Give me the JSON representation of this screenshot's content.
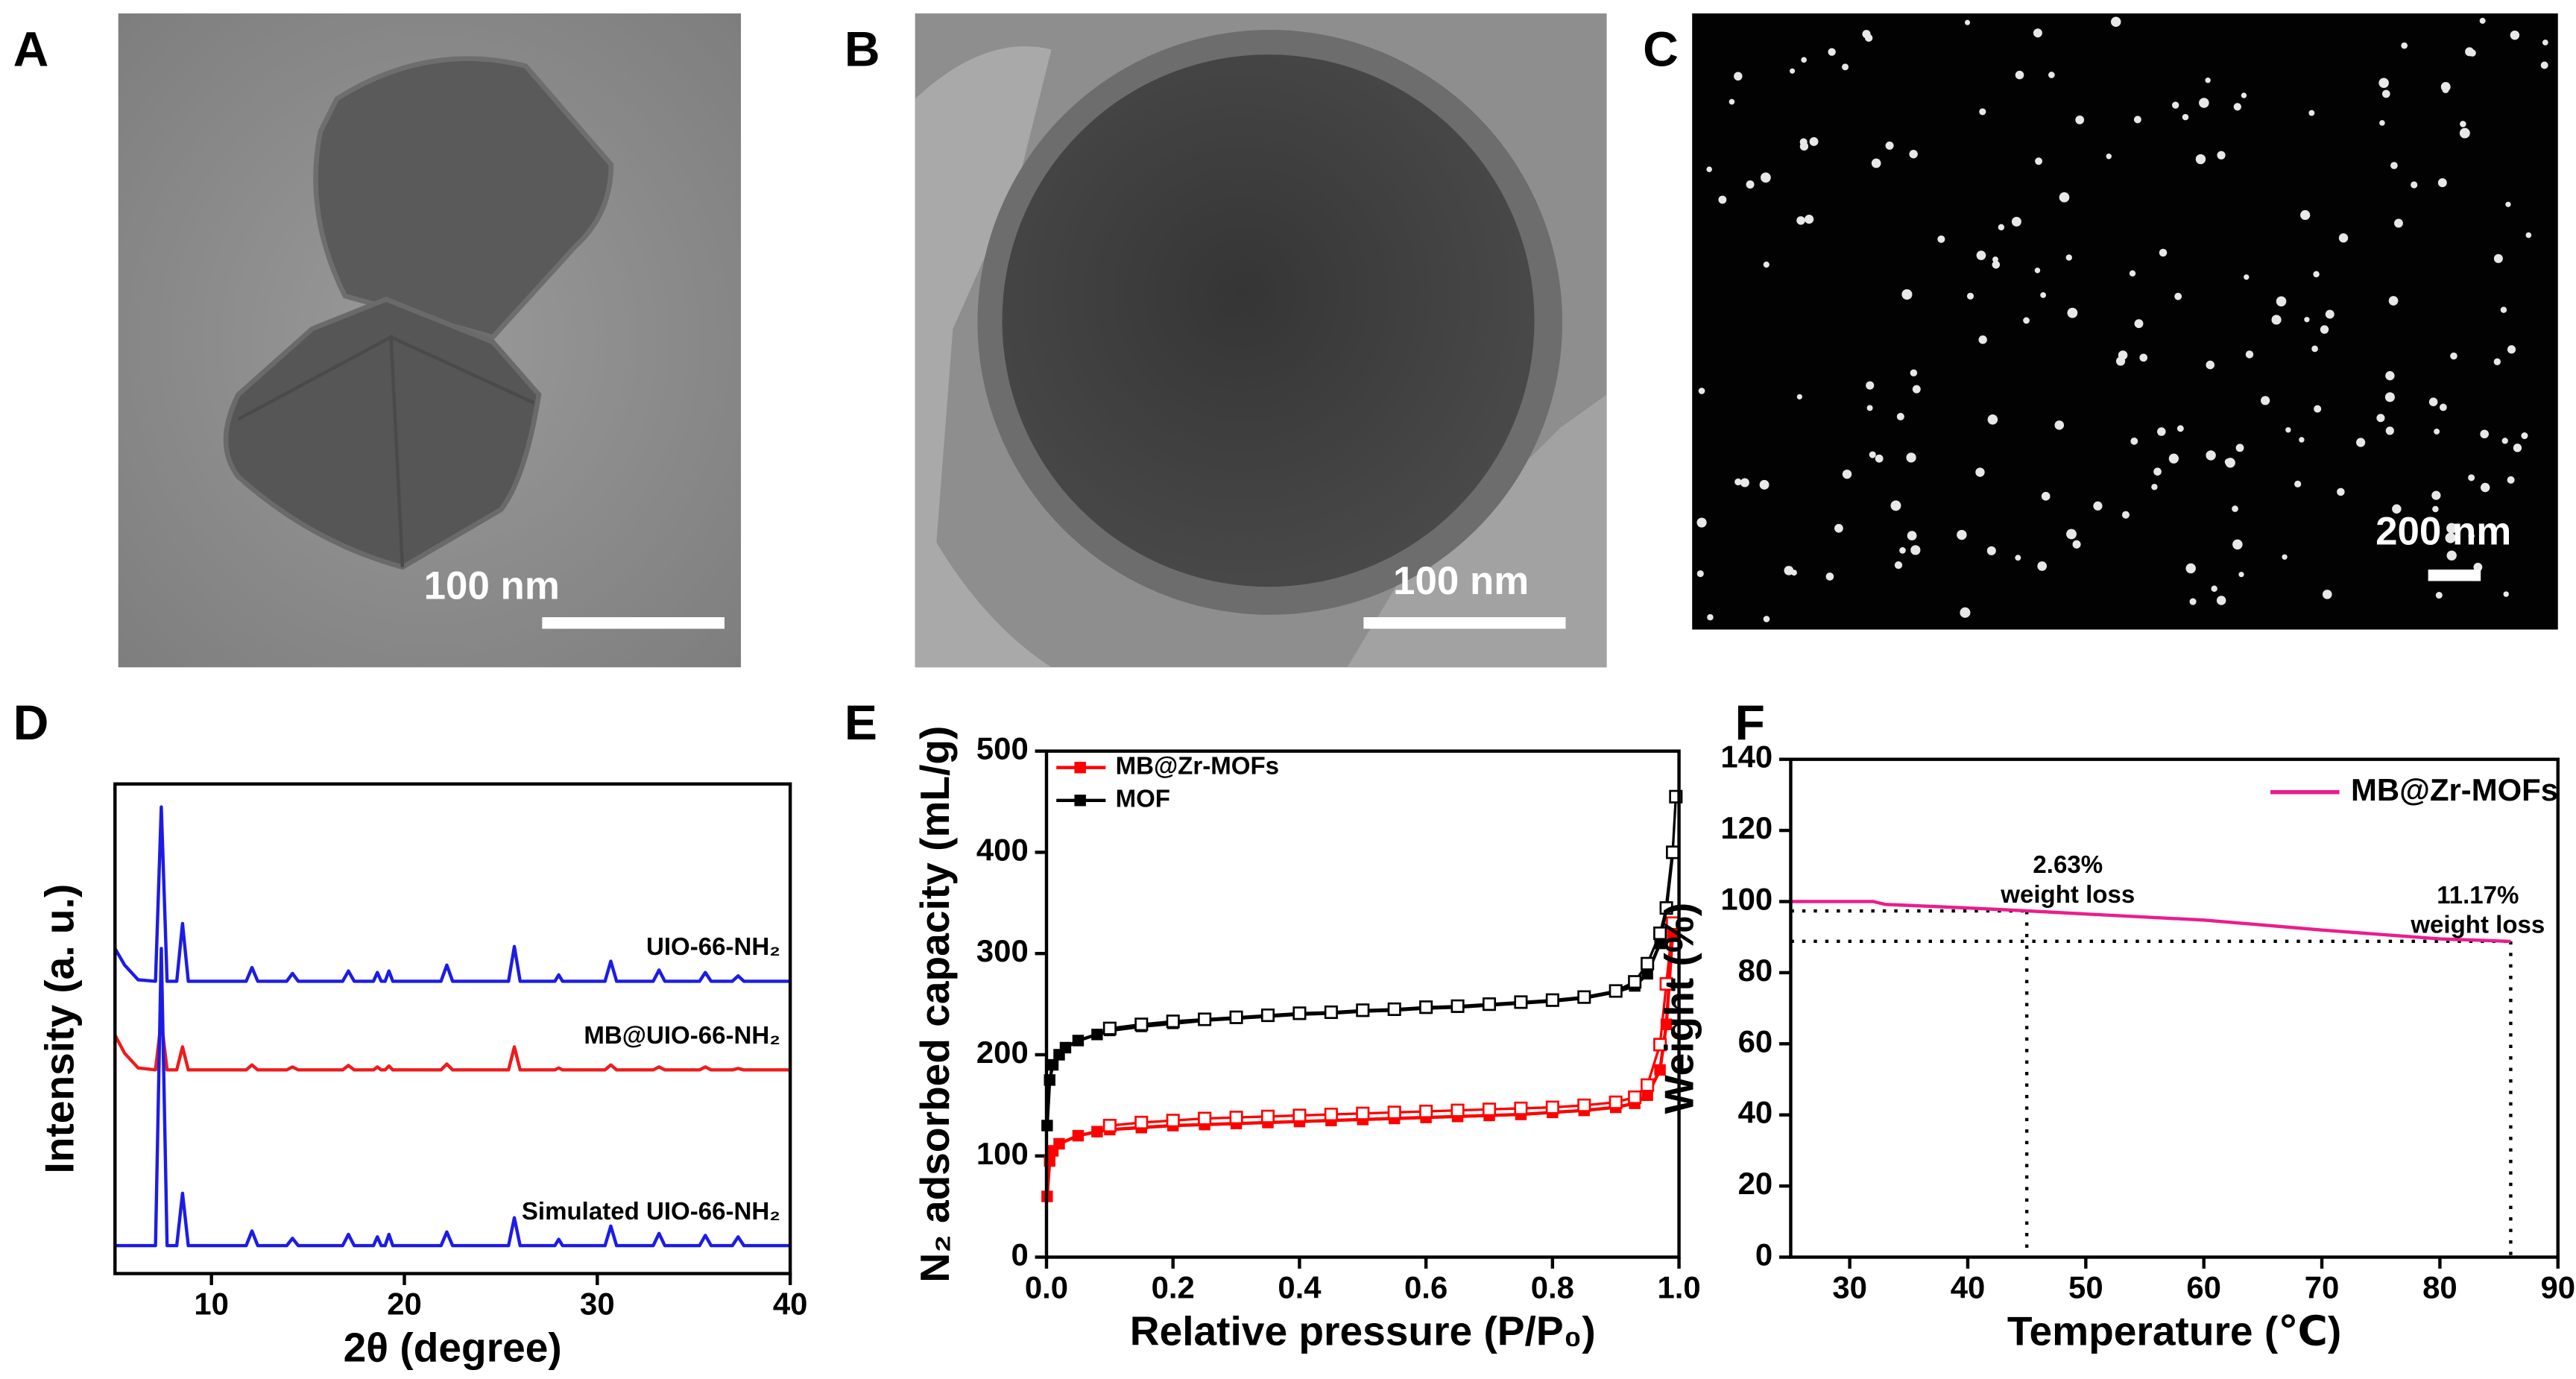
{
  "panels": [
    {
      "label": "A",
      "scale_bar": "100 nm"
    },
    {
      "label": "B",
      "scale_bar": "100 nm"
    },
    {
      "label": "C",
      "scale_bar": "200 nm"
    },
    {
      "label": "D"
    },
    {
      "label": "E"
    },
    {
      "label": "F"
    }
  ],
  "chart_data": [
    {
      "type": "line",
      "x_label": "2θ (degree)",
      "y_label": "Intensity (a. u.)",
      "legend": "inline",
      "xlim": [
        5,
        40
      ],
      "xticks": [
        10,
        20,
        30,
        40
      ],
      "ylim": [
        0,
        100
      ],
      "yticks": [],
      "x": [
        5,
        5.5,
        6.2,
        7.1,
        7.4,
        7.7,
        8.2,
        8.5,
        8.8,
        11.8,
        12.1,
        12.4,
        13.9,
        14.2,
        14.5,
        16.8,
        17.1,
        17.4,
        18.4,
        18.6,
        18.8,
        19.0,
        19.2,
        19.4,
        21.9,
        22.2,
        22.5,
        25.4,
        25.7,
        26.0,
        27.8,
        28.0,
        28.2,
        30.4,
        30.7,
        31.0,
        32.9,
        33.2,
        33.5,
        35.3,
        35.6,
        35.9,
        37.0,
        37.3,
        37.6,
        40
      ],
      "series": [
        {
          "name": "UIO-66-NH₂",
          "color": "#1c1ce6",
          "values": [
            66.4,
            63,
            60,
            59.7,
            95.3,
            59.7,
            59.7,
            71.5,
            59.7,
            59.7,
            62.5,
            59.7,
            59.7,
            61.3,
            59.7,
            59.7,
            61.8,
            59.7,
            59.7,
            61.5,
            59.7,
            59.7,
            61.8,
            59.7,
            59.7,
            63,
            59.7,
            59.7,
            66.8,
            59.7,
            59.7,
            61,
            59.7,
            59.7,
            63.8,
            59.7,
            59.7,
            62,
            59.7,
            59.7,
            61.5,
            59.7,
            59.7,
            60.8,
            59.7,
            59.7
          ]
        },
        {
          "name": "MB@UIO-66-NH₂",
          "color": "#ee1c1c",
          "values": [
            48.7,
            45,
            42,
            41.6,
            51.7,
            41.6,
            41.6,
            46.3,
            41.6,
            41.6,
            42.6,
            41.6,
            41.6,
            42.2,
            41.6,
            41.6,
            42.5,
            41.6,
            41.6,
            42.2,
            41.6,
            41.6,
            42.4,
            41.6,
            41.6,
            42.8,
            41.6,
            41.6,
            46.3,
            41.6,
            41.6,
            42,
            41.6,
            41.6,
            42.6,
            41.6,
            41.6,
            42.2,
            41.6,
            41.6,
            42.2,
            41.6,
            41.6,
            41.9,
            41.6,
            41.6
          ]
        },
        {
          "name": "Simulated UIO-66-NH₂",
          "color": "#1c1ce6",
          "values": [
            5.7,
            5.7,
            5.7,
            5.7,
            66.4,
            5.7,
            5.7,
            16.4,
            5.7,
            5.7,
            8.7,
            5.7,
            5.7,
            7.2,
            5.7,
            5.7,
            8,
            5.7,
            5.7,
            7.5,
            5.7,
            5.7,
            8,
            5.7,
            5.7,
            8.5,
            5.7,
            5.7,
            11.4,
            5.7,
            5.7,
            7,
            5.7,
            5.7,
            9.7,
            5.7,
            5.7,
            8.2,
            5.7,
            5.7,
            7.8,
            5.7,
            5.7,
            7.5,
            5.7,
            5.7
          ]
        }
      ]
    },
    {
      "type": "line",
      "x_label": "Relative pressure (P/P₀)",
      "y_label": "N₂ adsorbed capacity (mL/g)",
      "legend": "upper left",
      "markers": "square",
      "xlim": [
        0,
        1
      ],
      "xticks": [
        {
          "value": 0,
          "label": "0.0"
        },
        0.2,
        0.4,
        0.6,
        0.8,
        {
          "value": 1,
          "label": "1.0"
        }
      ],
      "ylim": [
        0,
        500
      ],
      "yticks": [
        0,
        100,
        200,
        300,
        400,
        500
      ],
      "series": [
        {
          "name": "MB@Zr-MOFs",
          "color": "#ff0000",
          "x": [
            0.001,
            0.005,
            0.01,
            0.02,
            0.05,
            0.08,
            0.1,
            0.15,
            0.2,
            0.25,
            0.3,
            0.35,
            0.4,
            0.45,
            0.5,
            0.55,
            0.6,
            0.65,
            0.7,
            0.75,
            0.8,
            0.85,
            0.9,
            0.93,
            0.95,
            0.97,
            0.98,
            0.99
          ],
          "values": [
            60,
            95,
            105,
            112,
            120,
            124,
            126,
            128,
            130,
            131,
            132,
            133,
            134,
            135,
            136,
            137,
            138,
            139,
            140,
            141,
            143,
            145,
            148,
            152,
            160,
            185,
            230,
            320
          ],
          "desorption_x": [
            0.99,
            0.98,
            0.97,
            0.95,
            0.93,
            0.9,
            0.85,
            0.8,
            0.75,
            0.7,
            0.65,
            0.6,
            0.55,
            0.5,
            0.45,
            0.4,
            0.35,
            0.3,
            0.25,
            0.2,
            0.15,
            0.1
          ],
          "desorption_values": [
            330,
            270,
            210,
            170,
            158,
            153,
            150,
            148,
            147,
            146,
            145,
            144,
            143,
            142,
            141,
            140,
            139,
            138,
            137,
            135,
            133,
            130
          ]
        },
        {
          "name": "MOF",
          "color": "#000000",
          "x": [
            0.001,
            0.005,
            0.01,
            0.02,
            0.03,
            0.05,
            0.08,
            0.1,
            0.15,
            0.2,
            0.25,
            0.3,
            0.35,
            0.4,
            0.45,
            0.5,
            0.55,
            0.6,
            0.65,
            0.7,
            0.75,
            0.8,
            0.85,
            0.9,
            0.93,
            0.95,
            0.97,
            0.98,
            0.99
          ],
          "values": [
            130,
            175,
            190,
            200,
            207,
            214,
            220,
            224,
            228,
            231,
            234,
            236,
            238,
            240,
            241,
            243,
            244,
            246,
            247,
            249,
            251,
            253,
            256,
            262,
            268,
            280,
            310,
            345,
            400
          ],
          "desorption_x": [
            0.995,
            0.99,
            0.98,
            0.97,
            0.95,
            0.93,
            0.9,
            0.85,
            0.8,
            0.75,
            0.7,
            0.65,
            0.6,
            0.55,
            0.5,
            0.45,
            0.4,
            0.35,
            0.3,
            0.25,
            0.2,
            0.15,
            0.1
          ],
          "desorption_values": [
            455,
            400,
            345,
            320,
            290,
            272,
            263,
            257,
            254,
            252,
            250,
            248,
            247,
            245,
            244,
            242,
            241,
            239,
            237,
            235,
            233,
            230,
            226
          ]
        }
      ]
    },
    {
      "type": "line",
      "x_label": "Temperature (℃)",
      "y_label": "Weight (%)",
      "legend": "upper right",
      "xlim": [
        25,
        90
      ],
      "xticks": [
        30,
        40,
        50,
        60,
        70,
        80,
        90
      ],
      "ylim": [
        0,
        140
      ],
      "yticks": [
        0,
        20,
        40,
        60,
        80,
        100,
        120,
        140
      ],
      "series": [
        {
          "name": "MB@Zr-MOFs",
          "color": "#ec1c8c",
          "x": [
            25,
            32,
            33,
            40,
            45,
            50,
            60,
            70,
            80,
            86
          ],
          "values": [
            100,
            100,
            99.2,
            98.2,
            97.4,
            96.5,
            94.8,
            92,
            89.5,
            88.8
          ]
        }
      ],
      "reference_lines": [
        {
          "x": 45,
          "y": 97.37
        },
        {
          "x": 86,
          "y": 88.83
        }
      ],
      "annotations": [
        {
          "text": [
            "2.63%",
            "weight loss"
          ]
        },
        {
          "text": [
            "11.17%",
            "weight loss"
          ]
        }
      ]
    }
  ]
}
